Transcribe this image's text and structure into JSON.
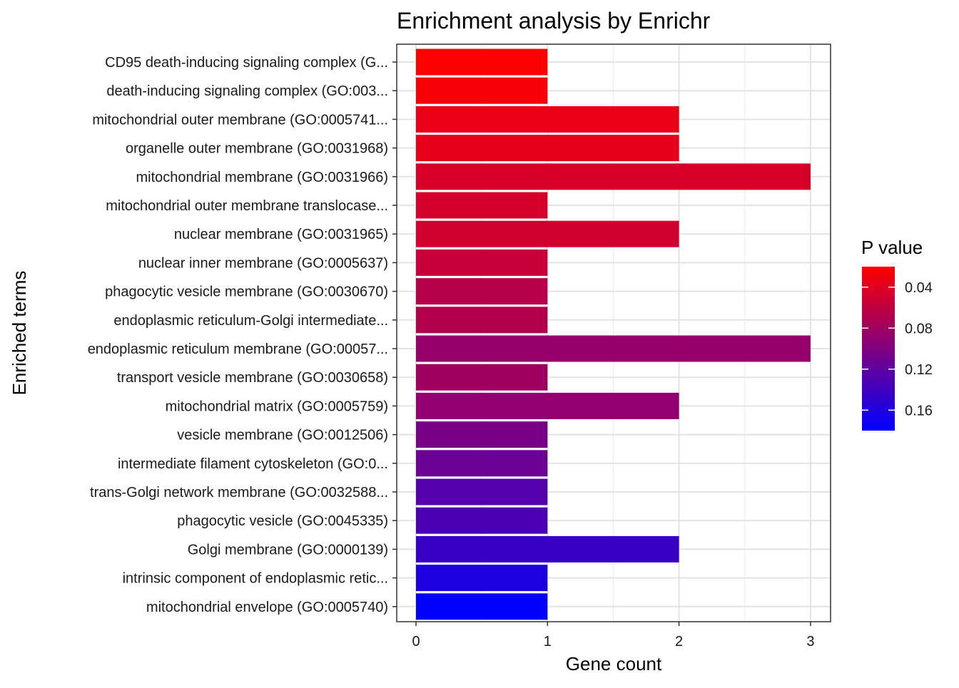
{
  "chart_data": {
    "type": "bar",
    "orientation": "horizontal",
    "title": "Enrichment analysis by Enrichr",
    "xlabel": "Gene count",
    "ylabel": "Enriched terms",
    "xlim": [
      0,
      3
    ],
    "x_ticks": [
      "0",
      "1",
      "2",
      "3"
    ],
    "grid": true,
    "categories": [
      "CD95 death-inducing signaling complex (G...",
      "death-inducing signaling complex (GO:003...",
      "mitochondrial outer membrane (GO:0005741...",
      "organelle outer membrane (GO:0031968)",
      "mitochondrial membrane (GO:0031966)",
      "mitochondrial outer membrane translocase...",
      "nuclear membrane (GO:0031965)",
      "nuclear inner membrane (GO:0005637)",
      "phagocytic vesicle membrane (GO:0030670)",
      "endoplasmic reticulum-Golgi intermediate...",
      "endoplasmic reticulum membrane (GO:00057...",
      "transport vesicle membrane (GO:0030658)",
      "mitochondrial matrix (GO:0005759)",
      "vesicle membrane (GO:0012506)",
      "intermediate filament cytoskeleton (GO:0...",
      "trans-Golgi network membrane (GO:0032588...",
      "phagocytic vesicle (GO:0045335)",
      "Golgi membrane (GO:0000139)",
      "intrinsic component of endoplasmic retic...",
      "mitochondrial envelope (GO:0005740)"
    ],
    "values": [
      1,
      1,
      2,
      2,
      3,
      1,
      2,
      1,
      1,
      1,
      3,
      1,
      2,
      1,
      1,
      1,
      1,
      2,
      1,
      1
    ],
    "color_values": [
      0.02,
      0.024,
      0.034,
      0.036,
      0.045,
      0.047,
      0.049,
      0.055,
      0.065,
      0.068,
      0.085,
      0.08,
      0.089,
      0.105,
      0.113,
      0.127,
      0.133,
      0.145,
      0.162,
      0.18
    ],
    "legend": {
      "title": "P value",
      "position": "right",
      "ticks": [
        "0.04",
        "0.08",
        "0.12",
        "0.16"
      ],
      "tick_values": [
        0.04,
        0.08,
        0.12,
        0.16
      ],
      "range": [
        0.02,
        0.18
      ],
      "color_low": "#FF0000",
      "color_high": "#0000FF"
    }
  }
}
